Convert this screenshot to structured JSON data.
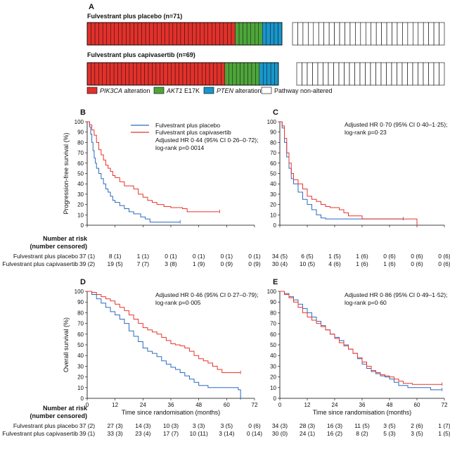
{
  "colors": {
    "pik3ca": "#e0312b",
    "akt1": "#4ea53b",
    "pten": "#1a95c9",
    "none": "#ffffff",
    "placebo": "#2a6bc0",
    "capi": "#e8352b"
  },
  "panel_a": {
    "label": "A",
    "placebo": {
      "title": "Fulvestrant plus placebo (n=71)",
      "pik3ca": 38,
      "akt1": 7,
      "pten": 5,
      "none": 29
    },
    "capi": {
      "title": "Fulvestrant plus capivasertib (n=69)",
      "pik3ca": 36,
      "akt1": 9,
      "pten": 5,
      "none": 28
    },
    "legend": [
      {
        "italic": "PIK3CA",
        "rest": " alteration",
        "key": "pik3ca"
      },
      {
        "italic": "AKT1",
        "rest": " E17K",
        "key": "akt1"
      },
      {
        "italic": "PTEN",
        "rest": " alteration",
        "key": "pten"
      },
      {
        "italic": "",
        "rest": "Pathway non-altered",
        "key": "none"
      }
    ]
  },
  "risk_header": [
    "Number at risk",
    "(number censored)"
  ],
  "groups": [
    "Fulvestrant plus placebo",
    "Fulvestrant plus capivasertib"
  ],
  "x_title": "Time since randomisation (months)",
  "y_titles": {
    "pfs": "Progression-free survival (%)",
    "os": "Overall survival (%)"
  },
  "legend_series": [
    "Fulvestrant plus placebo",
    "Fulvestrant plus capivasertib"
  ],
  "chart_data": [
    {
      "panel": "B",
      "type": "line",
      "ylabel": "Progression-free survival (%)",
      "xlim": [
        0,
        72
      ],
      "ylim": [
        0,
        100
      ],
      "x_ticks": [],
      "y_ticks": [
        0,
        10,
        20,
        30,
        40,
        50,
        60,
        70,
        80,
        90,
        100
      ],
      "annotation": [
        "Adjusted HR 0·44 (95% CI 0·26–0·72);",
        "log-rank p=0·0014"
      ],
      "series": [
        {
          "name": "Fulvestrant plus placebo",
          "points": [
            [
              0,
              100
            ],
            [
              1,
              95
            ],
            [
              1.5,
              88
            ],
            [
              2,
              80
            ],
            [
              2.5,
              72
            ],
            [
              3,
              65
            ],
            [
              3.5,
              60
            ],
            [
              4,
              55
            ],
            [
              5,
              50
            ],
            [
              6,
              45
            ],
            [
              7,
              40
            ],
            [
              8,
              35
            ],
            [
              9,
              32
            ],
            [
              10,
              28
            ],
            [
              11,
              24
            ],
            [
              12,
              22
            ],
            [
              14,
              19
            ],
            [
              16,
              16
            ],
            [
              18,
              13
            ],
            [
              20,
              11
            ],
            [
              23,
              8
            ],
            [
              25,
              6
            ],
            [
              27,
              3
            ],
            [
              40,
              3
            ]
          ]
        },
        {
          "name": "Fulvestrant plus capivasertib",
          "points": [
            [
              0,
              100
            ],
            [
              1,
              97
            ],
            [
              2,
              92
            ],
            [
              3,
              87
            ],
            [
              4,
              80
            ],
            [
              5,
              73
            ],
            [
              6,
              68
            ],
            [
              7,
              63
            ],
            [
              8,
              58
            ],
            [
              9,
              55
            ],
            [
              10,
              52
            ],
            [
              11,
              48
            ],
            [
              12,
              46
            ],
            [
              14,
              42
            ],
            [
              16,
              38
            ],
            [
              18,
              38
            ],
            [
              20,
              35
            ],
            [
              22,
              30
            ],
            [
              24,
              27
            ],
            [
              26,
              24
            ],
            [
              28,
              22
            ],
            [
              30,
              20
            ],
            [
              33,
              18
            ],
            [
              36,
              17
            ],
            [
              39,
              17
            ],
            [
              41,
              16
            ],
            [
              43,
              13
            ],
            [
              50,
              13
            ],
            [
              57,
              13
            ]
          ]
        }
      ]
    },
    {
      "panel": "C",
      "type": "line",
      "xlim": [
        0,
        72
      ],
      "ylim": [
        0,
        100
      ],
      "annotation": [
        "Adjusted HR 0·70 (95% CI 0·40–1·25);",
        "log-rank p=0·23"
      ],
      "series": [
        {
          "name": "Fulvestrant plus placebo",
          "points": [
            [
              0,
              100
            ],
            [
              1,
              94
            ],
            [
              2,
              80
            ],
            [
              3,
              66
            ],
            [
              4,
              55
            ],
            [
              5,
              45
            ],
            [
              6,
              40
            ],
            [
              8,
              32
            ],
            [
              10,
              25
            ],
            [
              12,
              20
            ],
            [
              14,
              15
            ],
            [
              16,
              10
            ],
            [
              18,
              7
            ],
            [
              20,
              6
            ],
            [
              28,
              6
            ],
            [
              40,
              6
            ],
            [
              48,
              6
            ],
            [
              54,
              6
            ]
          ]
        },
        {
          "name": "Fulvestrant plus capivasertib",
          "points": [
            [
              0,
              100
            ],
            [
              1,
              96
            ],
            [
              2,
              84
            ],
            [
              3,
              70
            ],
            [
              4,
              60
            ],
            [
              5,
              50
            ],
            [
              6,
              44
            ],
            [
              8,
              40
            ],
            [
              10,
              35
            ],
            [
              12,
              28
            ],
            [
              14,
              25
            ],
            [
              16,
              23
            ],
            [
              18,
              20
            ],
            [
              20,
              18
            ],
            [
              22,
              17
            ],
            [
              24,
              17
            ],
            [
              26,
              15
            ],
            [
              28,
              12
            ],
            [
              30,
              9
            ],
            [
              36,
              6
            ],
            [
              48,
              6
            ],
            [
              60,
              0
            ]
          ]
        }
      ]
    },
    {
      "panel": "D",
      "type": "line",
      "ylabel": "Overall survival (%)",
      "xlim": [
        0,
        72
      ],
      "ylim": [
        0,
        100
      ],
      "x_ticks": [
        0,
        12,
        24,
        36,
        48,
        60,
        72
      ],
      "y_ticks": [
        0,
        10,
        20,
        30,
        40,
        50,
        60,
        70,
        80,
        90,
        100
      ],
      "annotation": [
        "Adjusted HR 0·46 (95% CI 0·27–0·79);",
        "log-rank p=0·005"
      ],
      "series": [
        {
          "name": "Fulvestrant plus placebo",
          "points": [
            [
              0,
              100
            ],
            [
              2,
              97
            ],
            [
              4,
              93
            ],
            [
              6,
              89
            ],
            [
              8,
              85
            ],
            [
              10,
              81
            ],
            [
              12,
              78
            ],
            [
              14,
              74
            ],
            [
              16,
              70
            ],
            [
              18,
              63
            ],
            [
              20,
              58
            ],
            [
              22,
              53
            ],
            [
              24,
              47
            ],
            [
              26,
              44
            ],
            [
              28,
              42
            ],
            [
              30,
              39
            ],
            [
              32,
              35
            ],
            [
              34,
              32
            ],
            [
              36,
              29
            ],
            [
              38,
              27
            ],
            [
              40,
              24
            ],
            [
              42,
              21
            ],
            [
              44,
              18
            ],
            [
              46,
              15
            ],
            [
              48,
              12
            ],
            [
              52,
              10
            ],
            [
              58,
              10
            ],
            [
              62,
              10
            ],
            [
              65,
              8
            ],
            [
              66,
              0
            ]
          ]
        },
        {
          "name": "Fulvestrant plus capivasertib",
          "points": [
            [
              0,
              100
            ],
            [
              2,
              99
            ],
            [
              4,
              97
            ],
            [
              6,
              95
            ],
            [
              8,
              93
            ],
            [
              10,
              91
            ],
            [
              12,
              88
            ],
            [
              14,
              85
            ],
            [
              16,
              82
            ],
            [
              18,
              78
            ],
            [
              20,
              74
            ],
            [
              22,
              70
            ],
            [
              24,
              66
            ],
            [
              26,
              64
            ],
            [
              28,
              62
            ],
            [
              30,
              60
            ],
            [
              32,
              57
            ],
            [
              34,
              54
            ],
            [
              36,
              51
            ],
            [
              38,
              50
            ],
            [
              40,
              49
            ],
            [
              42,
              47
            ],
            [
              44,
              44
            ],
            [
              46,
              40
            ],
            [
              48,
              37
            ],
            [
              50,
              35
            ],
            [
              52,
              33
            ],
            [
              54,
              30
            ],
            [
              56,
              27
            ],
            [
              58,
              24
            ],
            [
              66,
              24
            ]
          ]
        }
      ]
    },
    {
      "panel": "E",
      "type": "line",
      "xlim": [
        0,
        72
      ],
      "ylim": [
        0,
        100
      ],
      "x_ticks": [
        0,
        12,
        24,
        36,
        48,
        60,
        72
      ],
      "annotation": [
        "Adjusted HR 0·86 (95% CI 0·49–1·52);",
        "log-rank p=0·60"
      ],
      "series": [
        {
          "name": "Fulvestrant plus placebo",
          "points": [
            [
              0,
              100
            ],
            [
              2,
              98
            ],
            [
              4,
              95
            ],
            [
              6,
              92
            ],
            [
              8,
              88
            ],
            [
              10,
              84
            ],
            [
              12,
              80
            ],
            [
              14,
              76
            ],
            [
              16,
              72
            ],
            [
              18,
              68
            ],
            [
              20,
              64
            ],
            [
              22,
              60
            ],
            [
              24,
              57
            ],
            [
              26,
              54
            ],
            [
              28,
              50
            ],
            [
              30,
              46
            ],
            [
              32,
              42
            ],
            [
              34,
              37
            ],
            [
              36,
              32
            ],
            [
              38,
              28
            ],
            [
              40,
              25
            ],
            [
              42,
              23
            ],
            [
              44,
              21
            ],
            [
              46,
              20
            ],
            [
              48,
              18
            ],
            [
              50,
              15
            ],
            [
              52,
              12
            ],
            [
              56,
              10
            ],
            [
              62,
              10
            ],
            [
              66,
              8
            ],
            [
              71,
              8
            ]
          ]
        },
        {
          "name": "Fulvestrant plus capivasertib",
          "points": [
            [
              0,
              100
            ],
            [
              2,
              97
            ],
            [
              4,
              94
            ],
            [
              6,
              90
            ],
            [
              8,
              85
            ],
            [
              10,
              80
            ],
            [
              12,
              76
            ],
            [
              14,
              73
            ],
            [
              16,
              70
            ],
            [
              18,
              67
            ],
            [
              20,
              64
            ],
            [
              22,
              60
            ],
            [
              24,
              56
            ],
            [
              26,
              52
            ],
            [
              28,
              49
            ],
            [
              30,
              46
            ],
            [
              32,
              42
            ],
            [
              34,
              38
            ],
            [
              36,
              34
            ],
            [
              38,
              30
            ],
            [
              40,
              26
            ],
            [
              42,
              24
            ],
            [
              44,
              22
            ],
            [
              46,
              21
            ],
            [
              48,
              20
            ],
            [
              50,
              18
            ],
            [
              52,
              16
            ],
            [
              54,
              14
            ],
            [
              58,
              13
            ],
            [
              71,
              13
            ]
          ]
        }
      ]
    }
  ],
  "risk_tables": [
    {
      "panel": "B",
      "rows": [
        [
          "37 (1)",
          "8 (1)",
          "1 (1)",
          "0 (1)",
          "0 (1)",
          "0 (1)",
          "0 (1)"
        ],
        [
          "39 (2)",
          "19 (5)",
          "7 (7)",
          "3 (8)",
          "1 (9)",
          "0 (9)",
          "0 (9)"
        ]
      ]
    },
    {
      "panel": "C",
      "rows": [
        [
          "34 (5)",
          "6 (5)",
          "1 (5)",
          "1 (6)",
          "0 (6)",
          "0 (6)",
          "0 (6)"
        ],
        [
          "30 (4)",
          "10 (5)",
          "4 (6)",
          "1 (6)",
          "1 (6)",
          "0 (6)",
          "0 (6)"
        ]
      ]
    },
    {
      "panel": "D",
      "rows": [
        [
          "37 (2)",
          "27 (3)",
          "14 (3)",
          "10 (3)",
          "3 (3)",
          "3 (5)",
          "0 (6)"
        ],
        [
          "39 (1)",
          "33 (3)",
          "23 (4)",
          "17 (7)",
          "10 (11)",
          "3 (14)",
          "0 (14)"
        ]
      ]
    },
    {
      "panel": "E",
      "rows": [
        [
          "34 (3)",
          "28 (3)",
          "16 (3)",
          "11 (5)",
          "3 (5)",
          "2 (6)",
          "1 (7)"
        ],
        [
          "30 (0)",
          "24 (1)",
          "16 (2)",
          "8 (2)",
          "5 (3)",
          "3 (5)",
          "1 (5)"
        ]
      ]
    }
  ]
}
